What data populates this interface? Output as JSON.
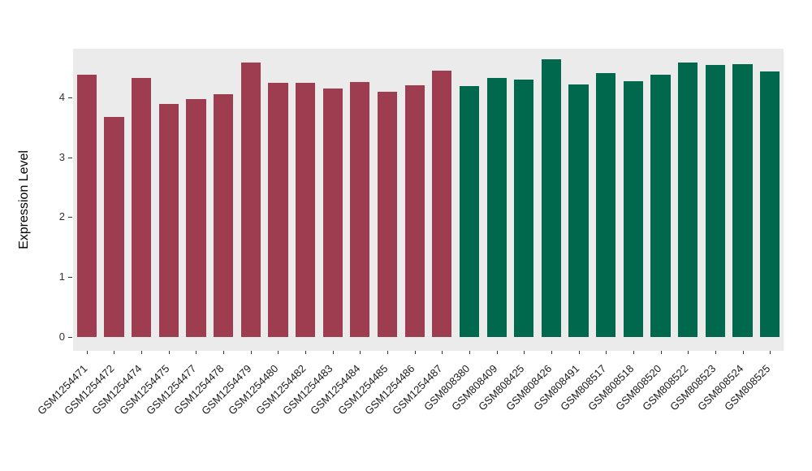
{
  "chart_data": {
    "type": "bar",
    "title": "",
    "xlabel": "",
    "ylabel": "Expression Level",
    "ylim": [
      0,
      4.8
    ],
    "yticks": [
      0,
      1,
      2,
      3,
      4
    ],
    "grid": false,
    "legend": "none",
    "panel_background": "#EBEBEB",
    "categories": [
      "GSM1254471",
      "GSM1254472",
      "GSM1254474",
      "GSM1254475",
      "GSM1254477",
      "GSM1254478",
      "GSM1254479",
      "GSM1254480",
      "GSM1254482",
      "GSM1254483",
      "GSM1254484",
      "GSM1254485",
      "GSM1254486",
      "GSM1254487",
      "GSM808380",
      "GSM808409",
      "GSM808425",
      "GSM808426",
      "GSM808491",
      "GSM808517",
      "GSM808518",
      "GSM808520",
      "GSM808522",
      "GSM808523",
      "GSM808524",
      "GSM808525"
    ],
    "values": [
      4.38,
      3.67,
      4.32,
      3.89,
      3.97,
      4.05,
      4.58,
      4.24,
      4.24,
      4.15,
      4.26,
      4.09,
      4.2,
      4.44,
      4.19,
      4.32,
      4.3,
      4.63,
      4.21,
      4.4,
      4.27,
      4.38,
      4.58,
      4.54,
      4.55,
      4.43
    ],
    "groups": [
      "A",
      "A",
      "A",
      "A",
      "A",
      "A",
      "A",
      "A",
      "A",
      "A",
      "A",
      "A",
      "A",
      "A",
      "B",
      "B",
      "B",
      "B",
      "B",
      "B",
      "B",
      "B",
      "B",
      "B",
      "B",
      "B"
    ],
    "group_colors": {
      "A": "#9E3D4F",
      "B": "#00684D"
    }
  }
}
